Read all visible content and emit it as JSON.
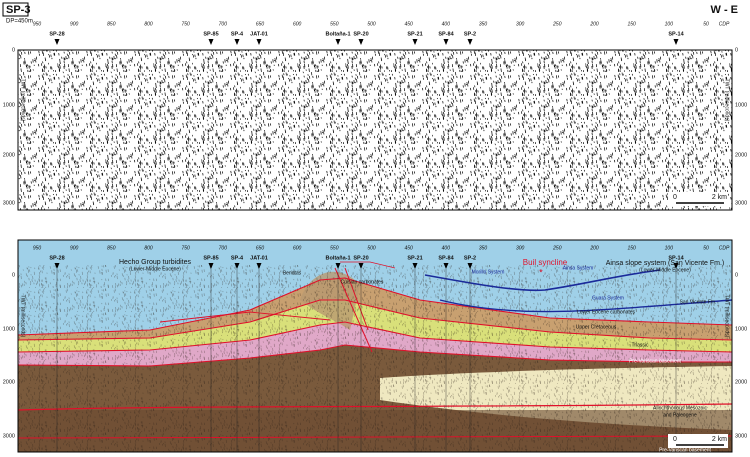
{
  "header": {
    "section": "SP-3",
    "spacing": "DP=450m",
    "orientation": "W - E"
  },
  "cdp_labels": [
    "950",
    "900",
    "850",
    "800",
    "750",
    "700",
    "650",
    "600",
    "550",
    "500",
    "450",
    "400",
    "350",
    "300",
    "250",
    "200",
    "150",
    "100",
    "50",
    "CDP"
  ],
  "wells": [
    "SP-28",
    "SP-85",
    "SP-4",
    "JAT-01",
    "Boltaña-1",
    "SP-20",
    "SP-21",
    "SP-84",
    "SP-2",
    "SP-14"
  ],
  "twt_axis": {
    "label": "TWT (milliseconds)",
    "ticks": [
      "0",
      "1000",
      "2000",
      "3000"
    ]
  },
  "scale_bar": {
    "start": "0",
    "end": "2 km"
  },
  "interpretation": {
    "labels": [
      "Hecho Group turbidites",
      "(Lower-Middle Eocene)",
      "Bendtas",
      "Cuisian carbonates",
      "Buil syncline",
      "Morillo System",
      "Ainsa System",
      "Ainsa slope system (San Vicente Fm.)",
      "(Lower-Middle Eocene)",
      "Guara System",
      "San Vicente Fm.",
      "Lower Eocene carbonates",
      "Upper Cretaceous",
      "Triassic",
      "Pre-Variscan basement",
      "Allochthonous Mesozoic",
      "and Paleogene",
      "Pre-Variscan basement"
    ]
  }
}
